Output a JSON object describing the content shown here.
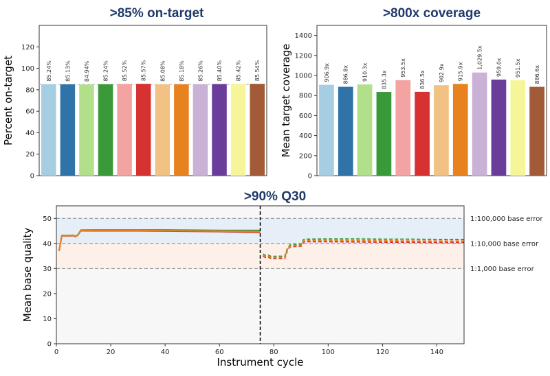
{
  "chart_data": [
    {
      "type": "bar",
      "title": ">85% on-target",
      "ylabel": "Percent on-target",
      "ylim": [
        0,
        140
      ],
      "yticks": [
        0,
        20,
        40,
        60,
        80,
        100,
        120
      ],
      "values": [
        85.24,
        85.13,
        84.94,
        85.24,
        85.52,
        85.57,
        85.08,
        85.18,
        85.26,
        85.4,
        85.42,
        85.54
      ],
      "labels": [
        "85.24%",
        "85.13%",
        "84.94%",
        "85.24%",
        "85.52%",
        "85.57%",
        "85.08%",
        "85.18%",
        "85.26%",
        "85.40%",
        "85.42%",
        "85.54%"
      ],
      "colors": [
        "#a6cee3",
        "#2f73a8",
        "#b2df8a",
        "#3a9a3a",
        "#f4a3a3",
        "#d73232",
        "#f2c285",
        "#e8821e",
        "#cab2d6",
        "#6a3d9a",
        "#f6f59a",
        "#a35a36"
      ],
      "reference_line": 85,
      "grid": false
    },
    {
      "type": "bar",
      "title": ">800x coverage",
      "ylabel": "Mean target coverage",
      "ylim": [
        0,
        1500
      ],
      "yticks": [
        0,
        200,
        400,
        600,
        800,
        1000,
        1200,
        1400
      ],
      "values": [
        906.9,
        886.8,
        910.3,
        835.3,
        953.5,
        836.5,
        902.9,
        915.9,
        1029.5,
        959.0,
        951.5,
        886.6
      ],
      "labels": [
        "906.9x",
        "886.8x",
        "910.3x",
        "835.3x",
        "953.5x",
        "836.5x",
        "902.9x",
        "915.9x",
        "1,029.5x",
        "959.0x",
        "951.5x",
        "886.6x"
      ],
      "colors": [
        "#a6cee3",
        "#2f73a8",
        "#b2df8a",
        "#3a9a3a",
        "#f4a3a3",
        "#d73232",
        "#f2c285",
        "#e8821e",
        "#cab2d6",
        "#6a3d9a",
        "#f6f59a",
        "#a35a36"
      ],
      "grid": false
    },
    {
      "type": "line",
      "title": ">90% Q30",
      "xlabel": "Instrument cycle",
      "ylabel": "Mean base quality",
      "xlim": [
        0,
        150
      ],
      "ylim": [
        0,
        55
      ],
      "xticks": [
        0,
        20,
        40,
        60,
        80,
        100,
        120,
        140
      ],
      "yticks": [
        0,
        10,
        20,
        30,
        40,
        50
      ],
      "read_boundary_cycle": 75,
      "reference_lines": [
        {
          "y": 50,
          "label": "1:100,000 base error"
        },
        {
          "y": 40,
          "label": "1:10,000 base error"
        },
        {
          "y": 30,
          "label": "1:1,000 base error"
        }
      ],
      "shaded_bands": [
        {
          "from": 40,
          "to": 50,
          "color": "#e6eff7"
        },
        {
          "from": 30,
          "to": 40,
          "color": "#fdf0e8"
        }
      ],
      "series": [
        {
          "color": "#3a9a3a",
          "style": "solid",
          "x": [
            1,
            2,
            5,
            6,
            7,
            8,
            9,
            15,
            20,
            30,
            40,
            50,
            60,
            70,
            75
          ],
          "y": [
            37.2,
            43.2,
            43.2,
            43.3,
            42.9,
            43.6,
            45.3,
            45.4,
            45.4,
            45.4,
            45.4,
            45.3,
            45.2,
            45.2,
            45.2
          ]
        },
        {
          "color": "#d73232",
          "style": "solid",
          "x": [
            1,
            2,
            5,
            6,
            7,
            8,
            9,
            15,
            20,
            30,
            40,
            50,
            60,
            70,
            75
          ],
          "y": [
            37.0,
            43.0,
            43.0,
            43.1,
            42.7,
            43.4,
            45.0,
            45.0,
            45.0,
            45.0,
            44.9,
            44.8,
            44.7,
            44.5,
            44.4
          ]
        },
        {
          "color": "#e8821e",
          "style": "solid",
          "x": [
            1,
            2,
            5,
            6,
            7,
            8,
            9,
            15,
            20,
            30,
            40,
            50,
            60,
            70,
            75
          ],
          "y": [
            37.1,
            43.1,
            43.1,
            43.2,
            42.8,
            43.5,
            45.1,
            45.2,
            45.2,
            45.2,
            45.1,
            45.0,
            44.9,
            44.8,
            44.7
          ]
        },
        {
          "color": "#3a9a3a",
          "style": "dashed",
          "x": [
            76,
            77,
            78,
            79,
            80,
            82,
            84,
            85,
            86,
            88,
            89,
            90,
            91,
            92,
            100,
            110,
            120,
            130,
            140,
            150
          ],
          "y": [
            35.8,
            35.2,
            35.3,
            34.8,
            34.8,
            34.9,
            34.8,
            38.0,
            39.4,
            39.5,
            39.5,
            39.6,
            41.6,
            41.7,
            41.8,
            41.8,
            41.7,
            41.7,
            41.6,
            41.6
          ]
        },
        {
          "color": "#d73232",
          "style": "dashed",
          "x": [
            76,
            77,
            78,
            79,
            80,
            82,
            84,
            85,
            86,
            88,
            89,
            90,
            91,
            92,
            100,
            110,
            120,
            130,
            140,
            150
          ],
          "y": [
            35.0,
            34.4,
            34.5,
            34.0,
            34.0,
            34.1,
            34.0,
            37.2,
            38.7,
            38.8,
            38.8,
            38.9,
            40.6,
            40.7,
            40.7,
            40.6,
            40.5,
            40.5,
            40.4,
            40.4
          ]
        },
        {
          "color": "#e8821e",
          "style": "dashed",
          "x": [
            76,
            77,
            78,
            79,
            80,
            82,
            84,
            85,
            86,
            88,
            89,
            90,
            91,
            92,
            100,
            110,
            120,
            130,
            140,
            150
          ],
          "y": [
            35.4,
            34.8,
            34.9,
            34.4,
            34.4,
            34.5,
            34.4,
            37.6,
            39.0,
            39.1,
            39.1,
            39.2,
            41.1,
            41.2,
            41.2,
            41.1,
            41.1,
            41.0,
            41.0,
            41.0
          ]
        }
      ]
    }
  ]
}
